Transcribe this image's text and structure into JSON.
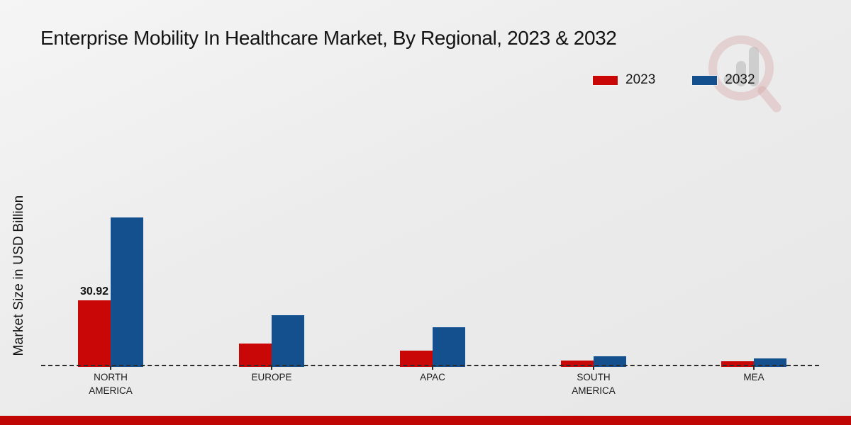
{
  "page": {
    "title": "Enterprise Mobility In Healthcare Market, By Regional, 2023 & 2032"
  },
  "colors": {
    "series_2023": "#c90707",
    "series_2032": "#14508d",
    "footer_bar": "#c00505",
    "baseline": "#2c2c2c",
    "background": "#ececec",
    "text": "#1a1a1a"
  },
  "legend": {
    "items": [
      {
        "label": "2023",
        "color": "#c90707"
      },
      {
        "label": "2032",
        "color": "#14508d"
      }
    ]
  },
  "watermark": {
    "name": "market-research-future-logo"
  },
  "chart_data": {
    "type": "bar",
    "title": "Enterprise Mobility In Healthcare Market, By Regional, 2023 & 2032",
    "xlabel": "",
    "ylabel": "Market Size in USD Billion",
    "categories": [
      "NORTH AMERICA",
      "EUROPE",
      "APAC",
      "SOUTH AMERICA",
      "MEA"
    ],
    "category_display": [
      "NORTH\nAMERICA",
      "EUROPE",
      "APAC",
      "SOUTH\nAMERICA",
      "MEA"
    ],
    "series": [
      {
        "name": "2023",
        "color": "#c90707",
        "values": [
          30.92,
          10.4,
          7.1,
          2.4,
          2.0
        ]
      },
      {
        "name": "2032",
        "color": "#14508d",
        "values": [
          70.3,
          23.9,
          18.2,
          4.4,
          3.4
        ]
      }
    ],
    "data_labels": [
      {
        "series_index": 0,
        "category_index": 0,
        "text": "30.92"
      }
    ],
    "ylim": [
      0,
      140
    ],
    "grid": false,
    "legend_position": "top-right",
    "baseline_style": "dashed"
  }
}
